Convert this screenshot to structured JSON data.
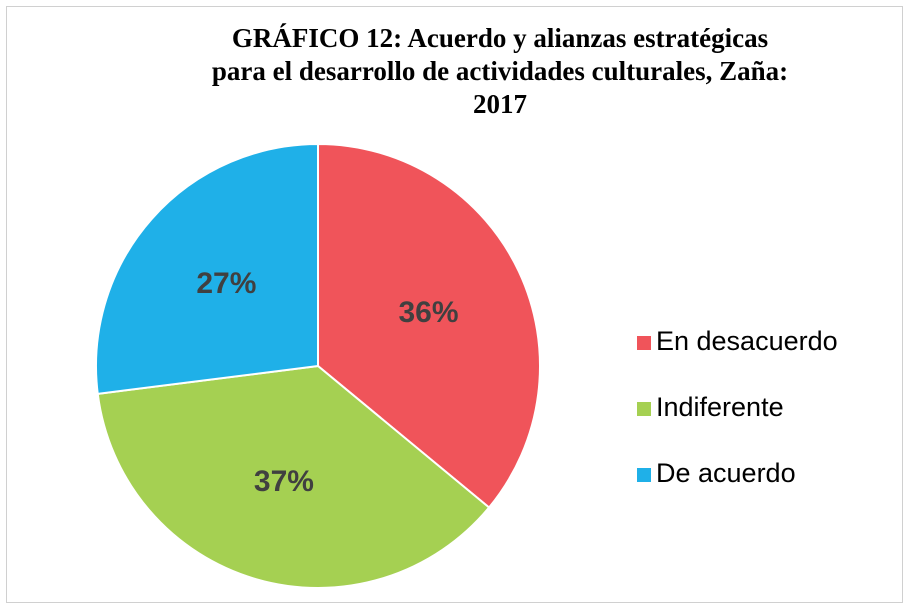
{
  "chart_data": {
    "type": "pie",
    "title": "GRÁFICO  12: Acuerdo y alianzas estratégicas\npara el desarrollo de actividades culturales, Zaña:\n2017",
    "categories": [
      "En desacuerdo",
      "Indiferente",
      "De acuerdo"
    ],
    "values": [
      36,
      37,
      27
    ],
    "value_labels": [
      "36%",
      "37%",
      "27%"
    ],
    "colors": [
      "#f0545a",
      "#a5d052",
      "#1fb0e8"
    ],
    "legend": "right"
  }
}
